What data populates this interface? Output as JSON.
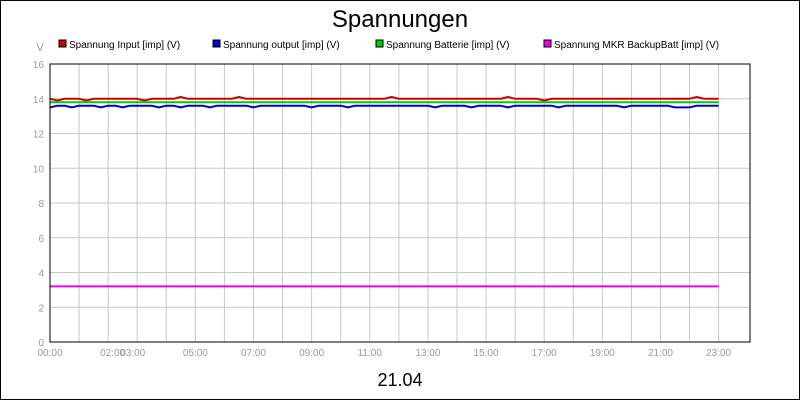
{
  "chart_data": {
    "type": "line",
    "title": "Spannungen",
    "ylabel": "V",
    "xlabel": "21.04",
    "ylim": [
      0,
      16
    ],
    "xlim": [
      0,
      24
    ],
    "yticks": [
      0,
      2,
      4,
      6,
      8,
      10,
      12,
      14,
      16
    ],
    "xticks": [
      {
        "h": 0,
        "label": "00:00"
      },
      {
        "h": 2,
        "label": "02:00"
      },
      {
        "h": 3,
        "label": "03:00"
      },
      {
        "h": 5,
        "label": "05:00"
      },
      {
        "h": 7,
        "label": "07:00"
      },
      {
        "h": 9,
        "label": "09:00"
      },
      {
        "h": 11,
        "label": "11:00"
      },
      {
        "h": 13,
        "label": "13:00"
      },
      {
        "h": 15,
        "label": "15:00"
      },
      {
        "h": 17,
        "label": "17:00"
      },
      {
        "h": 19,
        "label": "19:00"
      },
      {
        "h": 21,
        "label": "21:00"
      },
      {
        "h": 23,
        "label": "23:00"
      }
    ],
    "grid": true,
    "legend_position": "top",
    "x_start": 0,
    "x_step": 0.25,
    "series": [
      {
        "name": "Spannung Input [imp] (V)",
        "color": "#cc0000",
        "values": [
          14.0,
          13.9,
          14.0,
          14.0,
          14.0,
          13.9,
          14.0,
          14.0,
          14.0,
          14.0,
          14.0,
          14.0,
          14.0,
          13.9,
          14.0,
          14.0,
          14.0,
          14.0,
          14.1,
          14.0,
          14.0,
          14.0,
          14.0,
          14.0,
          14.0,
          14.0,
          14.1,
          14.0,
          14.0,
          14.0,
          14.0,
          14.0,
          14.0,
          14.0,
          14.0,
          14.0,
          14.0,
          14.0,
          14.0,
          14.0,
          14.0,
          14.0,
          14.0,
          14.0,
          14.0,
          14.0,
          14.0,
          14.1,
          14.0,
          14.0,
          14.0,
          14.0,
          14.0,
          14.0,
          14.0,
          14.0,
          14.0,
          14.0,
          14.0,
          14.0,
          14.0,
          14.0,
          14.0,
          14.1,
          14.0,
          14.0,
          14.0,
          14.0,
          13.9,
          14.0,
          14.0,
          14.0,
          14.0,
          14.0,
          14.0,
          14.0,
          14.0,
          14.0,
          14.0,
          14.0,
          14.0,
          14.0,
          14.0,
          14.0,
          14.0,
          14.0,
          14.0,
          14.0,
          14.0,
          14.1,
          14.0,
          14.0,
          14.0
        ]
      },
      {
        "name": "Spannung output [imp] (V)",
        "color": "#0000cc",
        "values": [
          13.5,
          13.6,
          13.6,
          13.5,
          13.6,
          13.6,
          13.6,
          13.5,
          13.6,
          13.6,
          13.5,
          13.6,
          13.6,
          13.6,
          13.6,
          13.5,
          13.6,
          13.6,
          13.5,
          13.6,
          13.6,
          13.6,
          13.5,
          13.6,
          13.6,
          13.6,
          13.6,
          13.6,
          13.5,
          13.6,
          13.6,
          13.6,
          13.6,
          13.6,
          13.6,
          13.6,
          13.5,
          13.6,
          13.6,
          13.6,
          13.6,
          13.5,
          13.6,
          13.6,
          13.6,
          13.6,
          13.6,
          13.6,
          13.6,
          13.6,
          13.6,
          13.6,
          13.6,
          13.5,
          13.6,
          13.6,
          13.6,
          13.6,
          13.5,
          13.6,
          13.6,
          13.6,
          13.6,
          13.5,
          13.6,
          13.6,
          13.6,
          13.6,
          13.6,
          13.6,
          13.5,
          13.6,
          13.6,
          13.6,
          13.6,
          13.6,
          13.6,
          13.6,
          13.6,
          13.5,
          13.6,
          13.6,
          13.6,
          13.6,
          13.6,
          13.6,
          13.5,
          13.5,
          13.5,
          13.6,
          13.6,
          13.6,
          13.6
        ]
      },
      {
        "name": "Spannung Batterie [imp] (V)",
        "color": "#00cc00",
        "values": [
          13.8,
          13.8,
          13.8,
          13.8,
          13.8,
          13.8,
          13.8,
          13.8,
          13.8,
          13.8,
          13.8,
          13.8,
          13.8,
          13.8,
          13.8,
          13.8,
          13.8,
          13.8,
          13.8,
          13.8,
          13.8,
          13.8,
          13.8,
          13.8,
          13.8,
          13.8,
          13.8,
          13.8,
          13.8,
          13.8,
          13.8,
          13.8,
          13.8,
          13.8,
          13.8,
          13.8,
          13.8,
          13.8,
          13.8,
          13.8,
          13.8,
          13.8,
          13.8,
          13.8,
          13.8,
          13.8,
          13.8,
          13.8,
          13.8,
          13.8,
          13.8,
          13.8,
          13.8,
          13.8,
          13.8,
          13.8,
          13.8,
          13.8,
          13.8,
          13.8,
          13.8,
          13.8,
          13.8,
          13.8,
          13.8,
          13.8,
          13.8,
          13.8,
          13.8,
          13.8,
          13.8,
          13.8,
          13.8,
          13.8,
          13.8,
          13.8,
          13.8,
          13.8,
          13.8,
          13.8,
          13.8,
          13.8,
          13.8,
          13.8,
          13.8,
          13.8,
          13.8,
          13.8,
          13.8,
          13.8,
          13.8,
          13.8,
          13.8
        ]
      },
      {
        "name": "Spannung MKR BackupBatt [imp] (V)",
        "color": "#ee00ee",
        "values": [
          3.2,
          3.2,
          3.2,
          3.2,
          3.2,
          3.2,
          3.2,
          3.2,
          3.2,
          3.2,
          3.2,
          3.2,
          3.2,
          3.2,
          3.2,
          3.2,
          3.2,
          3.2,
          3.2,
          3.2,
          3.2,
          3.2,
          3.2,
          3.2,
          3.2,
          3.2,
          3.2,
          3.2,
          3.2,
          3.2,
          3.2,
          3.2,
          3.2,
          3.2,
          3.2,
          3.2,
          3.2,
          3.2,
          3.2,
          3.2,
          3.2,
          3.2,
          3.2,
          3.2,
          3.2,
          3.2,
          3.2,
          3.2,
          3.2,
          3.2,
          3.2,
          3.2,
          3.2,
          3.2,
          3.2,
          3.2,
          3.2,
          3.2,
          3.2,
          3.2,
          3.2,
          3.2,
          3.2,
          3.2,
          3.2,
          3.2,
          3.2,
          3.2,
          3.2,
          3.2,
          3.2,
          3.2,
          3.2,
          3.2,
          3.2,
          3.2,
          3.2,
          3.2,
          3.2,
          3.2,
          3.2,
          3.2,
          3.2,
          3.2,
          3.2,
          3.2,
          3.2,
          3.2,
          3.2,
          3.2,
          3.2,
          3.2,
          3.2
        ]
      }
    ]
  }
}
